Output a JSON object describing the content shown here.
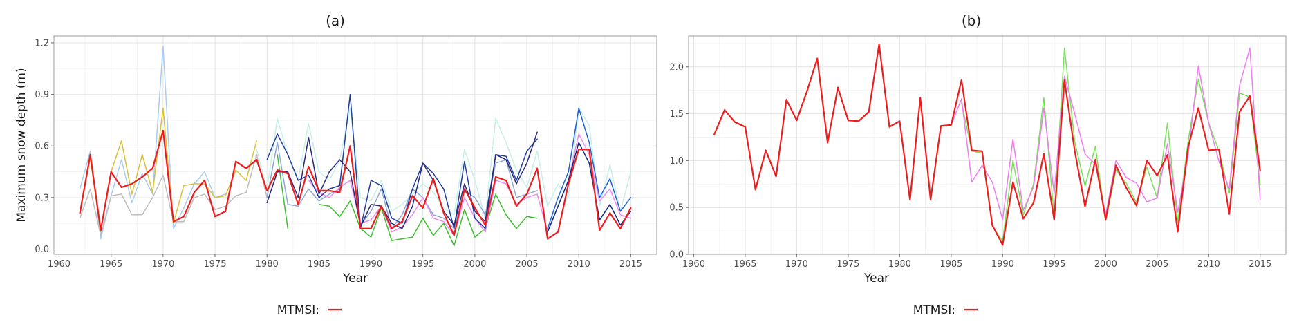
{
  "chart_data": [
    {
      "type": "line",
      "title": "(a)",
      "xlabel": "Year",
      "ylabel": "Maximum snow depth (m)",
      "xlim": [
        1959.5,
        2017.5
      ],
      "ylim": [
        -0.03,
        1.24
      ],
      "xticks": [
        1960,
        1965,
        1970,
        1975,
        1980,
        1985,
        1990,
        1995,
        2000,
        2005,
        2010,
        2015
      ],
      "yticks": [
        0.0,
        0.3,
        0.6,
        0.9,
        1.2
      ],
      "ytick_labels": [
        "0.0",
        "0.3",
        "0.6",
        "0.9",
        "1.2"
      ],
      "grid": true,
      "legend": {
        "placement": "bottom",
        "title": "MTMSI:",
        "entries": [
          ""
        ]
      },
      "series": [
        {
          "color": "#a9cdf0",
          "x": [
            1962,
            1963,
            1964,
            1965,
            1966,
            1967,
            1968,
            1969,
            1970,
            1971,
            1972,
            1973,
            1974,
            1975,
            1976
          ],
          "y": [
            0.35,
            0.57,
            0.06,
            0.31,
            0.52,
            0.27,
            0.44,
            0.32,
            1.18,
            0.12,
            0.24,
            0.38,
            0.45,
            0.3,
            0.32
          ]
        },
        {
          "color": "#d9bf3a",
          "x": [
            1962,
            1963,
            1964,
            1965,
            1966,
            1967,
            1968,
            1969,
            1970,
            1971,
            1972,
            1973,
            1974,
            1975,
            1976,
            1977,
            1978,
            1979
          ],
          "y": [
            0.21,
            0.53,
            0.1,
            0.45,
            0.63,
            0.32,
            0.55,
            0.33,
            0.82,
            0.15,
            0.37,
            0.38,
            0.38,
            0.3,
            0.31,
            0.46,
            0.4,
            0.63
          ]
        },
        {
          "color": "#bdbdbd",
          "x": [
            1962,
            1963,
            1964,
            1965,
            1966,
            1967,
            1968,
            1969,
            1970,
            1971,
            1972,
            1973,
            1974,
            1975,
            1976,
            1977,
            1978,
            1979,
            1980
          ],
          "y": [
            0.18,
            0.35,
            0.08,
            0.31,
            0.32,
            0.2,
            0.2,
            0.3,
            0.43,
            0.16,
            0.16,
            0.3,
            0.32,
            0.23,
            0.25,
            0.31,
            0.33,
            0.55,
            0.3
          ]
        },
        {
          "color": "#c5f0e8",
          "x": [
            1979,
            1980,
            1981,
            1982,
            1983,
            1984,
            1985,
            1986,
            1987,
            1988,
            1989,
            1990,
            1991,
            1992,
            1993,
            1994,
            1995,
            1996,
            1997,
            1998,
            1999,
            2000,
            2001,
            2002,
            2003,
            2004,
            2005,
            2006,
            2007,
            2008,
            2009,
            2010,
            2011,
            2012,
            2013,
            2014,
            2015
          ],
          "y": [
            0.58,
            0.35,
            0.76,
            0.55,
            0.4,
            0.73,
            0.45,
            0.4,
            0.52,
            0.82,
            0.3,
            0.28,
            0.4,
            0.22,
            0.26,
            0.32,
            0.38,
            0.33,
            0.24,
            0.2,
            0.58,
            0.4,
            0.18,
            0.76,
            0.62,
            0.46,
            0.36,
            0.57,
            0.25,
            0.38,
            0.3,
            0.82,
            0.72,
            0.25,
            0.49,
            0.22,
            0.45
          ]
        },
        {
          "color": "#3cbf2e",
          "x": [
            1981,
            1982
          ],
          "y": [
            0.55,
            0.12
          ]
        },
        {
          "color": "#3cbf2e",
          "x": [
            1985,
            1986,
            1987,
            1988,
            1989,
            1990,
            1991,
            1992,
            1993,
            1994,
            1995,
            1996,
            1997,
            1998,
            1999,
            2000,
            2001,
            2002,
            2003,
            2004,
            2005,
            2006
          ],
          "y": [
            0.26,
            0.25,
            0.19,
            0.28,
            0.12,
            0.07,
            0.24,
            0.05,
            0.06,
            0.07,
            0.18,
            0.08,
            0.15,
            0.02,
            0.23,
            0.07,
            0.12,
            0.32,
            0.2,
            0.12,
            0.19,
            0.18
          ]
        },
        {
          "color": "#8ea6d6",
          "x": [
            1980,
            1981,
            1982,
            1983,
            1984,
            1985,
            1986,
            1987,
            1988,
            1989,
            1990,
            1991,
            1992,
            1993,
            1994,
            1995,
            1996,
            1997,
            1998,
            1999,
            2000,
            2001,
            2002,
            2003,
            2004,
            2005,
            2006
          ],
          "y": [
            0.3,
            0.62,
            0.26,
            0.25,
            0.35,
            0.28,
            0.32,
            0.35,
            0.6,
            0.14,
            0.22,
            0.35,
            0.12,
            0.2,
            0.35,
            0.3,
            0.2,
            0.18,
            0.12,
            0.34,
            0.3,
            0.2,
            0.5,
            0.52,
            0.3,
            0.32,
            0.34
          ]
        },
        {
          "color": "#ee8cee",
          "x": [
            1984,
            1985,
            1986,
            1987,
            1988,
            1989,
            1990,
            1991,
            1992,
            1993,
            1994,
            1995,
            1996,
            1997,
            1998,
            1999,
            2000,
            2001,
            2002,
            2003,
            2004,
            2005,
            2006,
            2007,
            2008,
            2009,
            2010,
            2011,
            2012,
            2013,
            2014,
            2015
          ],
          "y": [
            0.4,
            0.33,
            0.3,
            0.36,
            0.4,
            0.15,
            0.17,
            0.25,
            0.1,
            0.13,
            0.2,
            0.3,
            0.18,
            0.16,
            0.08,
            0.3,
            0.18,
            0.1,
            0.4,
            0.38,
            0.26,
            0.3,
            0.32,
            0.1,
            0.25,
            0.4,
            0.67,
            0.55,
            0.28,
            0.35,
            0.2,
            0.18
          ]
        },
        {
          "color": "#1f3e9e",
          "x": [
            1980,
            1981,
            1982,
            1983,
            1984,
            1985,
            1986,
            1987,
            1988,
            1989,
            1990,
            1991,
            1992,
            1993,
            1994,
            1995,
            1996,
            1997,
            1998,
            1999,
            2000,
            2001,
            2002,
            2003,
            2004,
            2005,
            2006
          ],
          "y": [
            0.52,
            0.67,
            0.55,
            0.4,
            0.43,
            0.3,
            0.35,
            0.37,
            0.9,
            0.12,
            0.4,
            0.37,
            0.18,
            0.15,
            0.35,
            0.5,
            0.44,
            0.35,
            0.12,
            0.51,
            0.18,
            0.12,
            0.55,
            0.54,
            0.4,
            0.57,
            0.64
          ]
        },
        {
          "color": "#28287a",
          "x": [
            1980,
            1981,
            1982,
            1983,
            1984,
            1985,
            1986,
            1987,
            1988,
            1989,
            1990,
            1991,
            1992,
            1993,
            1994,
            1995,
            1996,
            1997,
            1998,
            1999,
            2000,
            2001,
            2002,
            2003,
            2004,
            2005,
            2006
          ],
          "y": [
            0.27,
            0.45,
            0.45,
            0.3,
            0.65,
            0.32,
            0.45,
            0.52,
            0.45,
            0.13,
            0.26,
            0.25,
            0.15,
            0.12,
            0.25,
            0.5,
            0.4,
            0.22,
            0.14,
            0.38,
            0.22,
            0.16,
            0.55,
            0.52,
            0.38,
            0.5,
            0.68
          ]
        },
        {
          "color": "#1d63d4",
          "x": [
            2007,
            2008,
            2009,
            2010,
            2011,
            2012,
            2013,
            2014,
            2015
          ],
          "y": [
            0.12,
            0.3,
            0.45,
            0.82,
            0.62,
            0.3,
            0.41,
            0.22,
            0.3
          ]
        },
        {
          "color": "#0f2a7d",
          "x": [
            2007,
            2008,
            2009,
            2010,
            2011,
            2012,
            2013,
            2014,
            2015
          ],
          "y": [
            0.1,
            0.25,
            0.4,
            0.62,
            0.5,
            0.17,
            0.26,
            0.14,
            0.22
          ]
        },
        {
          "color": "#ee1c1c",
          "emphasis": true,
          "x": [
            1962,
            1963,
            1964,
            1965,
            1966,
            1967,
            1968,
            1969,
            1970,
            1971,
            1972,
            1973,
            1974,
            1975,
            1976,
            1977,
            1978,
            1979,
            1980,
            1981,
            1982,
            1983,
            1984,
            1985,
            1986,
            1987,
            1988,
            1989,
            1990,
            1991,
            1992,
            1993,
            1994,
            1995,
            1996,
            1997,
            1998,
            1999,
            2000,
            2001,
            2002,
            2003,
            2004,
            2005,
            2006,
            2007,
            2008,
            2009,
            2010,
            2011,
            2012,
            2013,
            2014,
            2015
          ],
          "y": [
            0.21,
            0.55,
            0.11,
            0.45,
            0.36,
            0.38,
            0.42,
            0.47,
            0.69,
            0.16,
            0.19,
            0.33,
            0.4,
            0.19,
            0.22,
            0.51,
            0.47,
            0.52,
            0.34,
            0.46,
            0.44,
            0.26,
            0.48,
            0.34,
            0.34,
            0.33,
            0.6,
            0.12,
            0.12,
            0.25,
            0.12,
            0.16,
            0.31,
            0.24,
            0.41,
            0.21,
            0.08,
            0.35,
            0.24,
            0.14,
            0.42,
            0.4,
            0.25,
            0.32,
            0.47,
            0.06,
            0.1,
            0.38,
            0.58,
            0.58,
            0.11,
            0.21,
            0.12,
            0.24
          ]
        }
      ]
    },
    {
      "type": "line",
      "title": "(b)",
      "xlabel": "Year",
      "ylabel": "",
      "xlim": [
        1959.5,
        2017.5
      ],
      "ylim": [
        0.0,
        2.33
      ],
      "xticks": [
        1960,
        1965,
        1970,
        1975,
        1980,
        1985,
        1990,
        1995,
        2000,
        2005,
        2010,
        2015
      ],
      "yticks": [
        0.0,
        0.5,
        1.0,
        1.5,
        2.0
      ],
      "ytick_labels": [
        "0.0",
        "0.5",
        "1.0",
        "1.5",
        "2.0"
      ],
      "grid": true,
      "legend": {
        "placement": "bottom",
        "title": "MTMSI:",
        "entries": [
          ""
        ]
      },
      "series": [
        {
          "color": "#78e05a",
          "x": [
            1986,
            1987,
            1988,
            1989,
            1990,
            1991,
            1992,
            1993,
            1994,
            1995,
            1996,
            1997,
            1998,
            1999,
            2000,
            2001,
            2002,
            2003,
            2004,
            2005,
            2006,
            2007,
            2008,
            2009,
            2010,
            2011,
            2012,
            2013,
            2014,
            2015
          ],
          "y": [
            1.62,
            1.1,
            1.08,
            0.3,
            0.14,
            1.0,
            0.42,
            0.75,
            1.67,
            0.4,
            2.2,
            1.2,
            0.73,
            1.15,
            0.36,
            0.9,
            0.76,
            0.55,
            0.93,
            0.6,
            1.4,
            0.34,
            1.2,
            1.87,
            1.4,
            1.1,
            0.65,
            1.72,
            1.68,
            0.74
          ]
        },
        {
          "color": "#ee7cee",
          "x": [
            1985,
            1986,
            1987,
            1988,
            1989,
            1990,
            1991,
            1992,
            1993,
            1994,
            1995,
            1996,
            1997,
            1998,
            1999,
            2000,
            2001,
            2002,
            2003,
            2004,
            2005,
            2006,
            2007,
            2008,
            2009,
            2010,
            2011,
            2012,
            2013,
            2014,
            2015
          ],
          "y": [
            1.38,
            1.66,
            0.77,
            0.95,
            0.77,
            0.37,
            1.23,
            0.47,
            0.72,
            1.56,
            0.65,
            1.9,
            1.5,
            1.07,
            0.96,
            0.42,
            1.0,
            0.82,
            0.76,
            0.56,
            0.6,
            1.18,
            0.45,
            1.05,
            2.01,
            1.4,
            0.99,
            0.7,
            1.8,
            2.2,
            0.58
          ]
        },
        {
          "color": "#ee1c1c",
          "emphasis": true,
          "x": [
            1962,
            1963,
            1964,
            1965,
            1966,
            1967,
            1968,
            1969,
            1970,
            1971,
            1972,
            1973,
            1974,
            1975,
            1976,
            1977,
            1978,
            1979,
            1980,
            1981,
            1982,
            1983,
            1984,
            1985,
            1986,
            1987,
            1988,
            1989,
            1990,
            1991,
            1992,
            1993,
            1994,
            1995,
            1996,
            1997,
            1998,
            1999,
            2000,
            2001,
            2002,
            2003,
            2004,
            2005,
            2006,
            2007,
            2008,
            2009,
            2010,
            2011,
            2012,
            2013,
            2014,
            2015
          ],
          "y": [
            1.28,
            1.54,
            1.41,
            1.36,
            0.69,
            1.11,
            0.83,
            1.65,
            1.43,
            1.74,
            2.09,
            1.19,
            1.78,
            1.43,
            1.42,
            1.52,
            2.24,
            1.36,
            1.42,
            0.58,
            1.67,
            0.58,
            1.37,
            1.38,
            1.86,
            1.11,
            1.1,
            0.31,
            0.1,
            0.77,
            0.38,
            0.55,
            1.07,
            0.37,
            1.86,
            1.1,
            0.51,
            1.01,
            0.37,
            0.95,
            0.71,
            0.52,
            1.0,
            0.84,
            1.06,
            0.24,
            1.14,
            1.56,
            1.11,
            1.12,
            0.43,
            1.52,
            1.69,
            0.89
          ]
        }
      ]
    }
  ]
}
